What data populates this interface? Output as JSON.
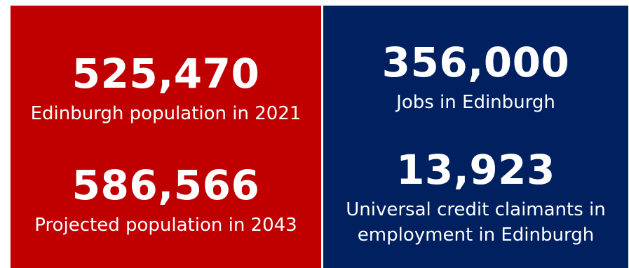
{
  "colors": {
    "left_panel": "#c00000",
    "right_panel": "#002060",
    "text": "#ffffff"
  },
  "left_panel": {
    "stats": [
      {
        "value": "525,470",
        "caption": "Edinburgh population in 2021"
      },
      {
        "value": "586,566",
        "caption": "Projected population in 2043"
      }
    ]
  },
  "right_panel": {
    "stats": [
      {
        "value": "356,000",
        "caption": "Jobs in Edinburgh"
      },
      {
        "value": "13,923",
        "caption": "Universal credit claimants in employment in Edinburgh"
      }
    ]
  }
}
